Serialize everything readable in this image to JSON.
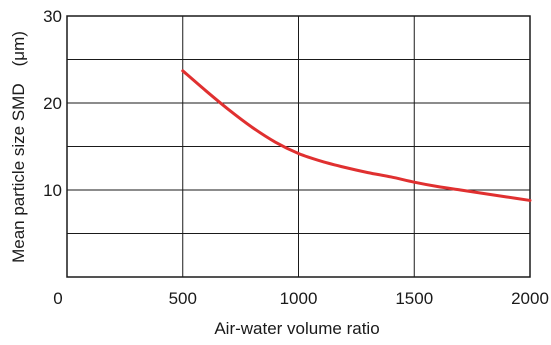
{
  "chart_data": {
    "type": "line",
    "title": "",
    "xlabel": "Air-water volume ratio",
    "ylabel": "Mean particle size SMD　(μm)",
    "xlim": [
      0,
      2000
    ],
    "ylim": [
      0,
      30
    ],
    "x_ticks": [
      "0",
      "500",
      "1000",
      "1500",
      "2000"
    ],
    "y_ticks": [
      "10",
      "20",
      "30"
    ],
    "grid": true,
    "line_color": "#e03030",
    "series": [
      {
        "x": [
          500,
          600,
          700,
          800,
          900,
          1000,
          1100,
          1200,
          1300,
          1400,
          1500,
          1600,
          1700,
          1800,
          1900,
          2000
        ],
        "values": [
          23.7,
          21.4,
          19.2,
          17.2,
          15.5,
          14.2,
          13.3,
          12.6,
          12.0,
          11.5,
          10.9,
          10.4,
          10.0,
          9.6,
          9.2,
          8.8
        ]
      }
    ]
  }
}
